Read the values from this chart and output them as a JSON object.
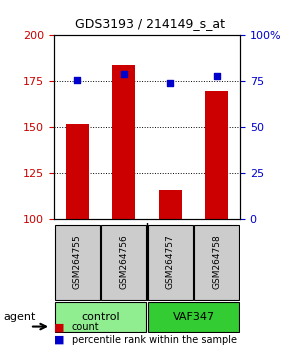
{
  "title": "GDS3193 / 214149_s_at",
  "samples": [
    "GSM264755",
    "GSM264756",
    "GSM264757",
    "GSM264758"
  ],
  "counts": [
    152,
    184,
    116,
    170
  ],
  "percentile_ranks": [
    76,
    79,
    74,
    78
  ],
  "ylim_left": [
    100,
    200
  ],
  "ylim_right": [
    0,
    100
  ],
  "yticks_left": [
    100,
    125,
    150,
    175,
    200
  ],
  "yticks_right": [
    0,
    25,
    50,
    75,
    100
  ],
  "ytick_labels_right": [
    "0",
    "25",
    "50",
    "75",
    "100%"
  ],
  "bar_color": "#cc0000",
  "dot_color": "#0000cc",
  "groups": [
    {
      "label": "control",
      "samples": [
        0,
        1
      ],
      "color": "#90ee90"
    },
    {
      "label": "VAF347",
      "samples": [
        2,
        3
      ],
      "color": "#00cc00"
    }
  ],
  "group_label": "agent",
  "left_tick_color": "#cc0000",
  "right_tick_color": "#0000cc",
  "legend_count_color": "#cc0000",
  "legend_pct_color": "#0000cc",
  "bar_width": 0.5,
  "background_color": "#ffffff"
}
